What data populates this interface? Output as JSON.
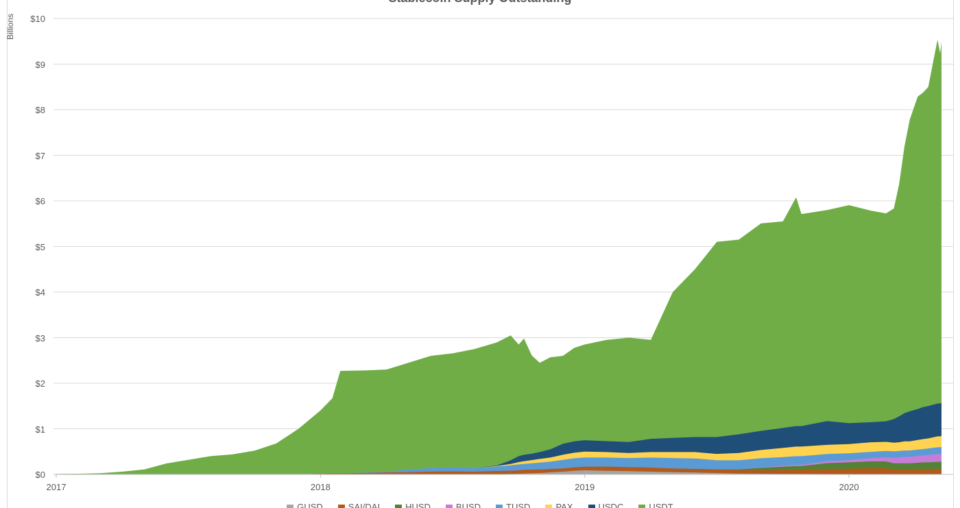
{
  "chart_data": {
    "type": "area",
    "stacked": true,
    "title": "Stablecoin Supply Outstanding",
    "y_unit_label": "Billions",
    "ylim": [
      0,
      10
    ],
    "y_tick_labels": [
      "$0",
      "$1",
      "$2",
      "$3",
      "$4",
      "$5",
      "$6",
      "$7",
      "$8",
      "$9",
      "$10"
    ],
    "xlim": [
      2017.0,
      2020.35
    ],
    "x_tick_positions": [
      2017,
      2018,
      2019,
      2020
    ],
    "x_tick_labels": [
      "2017",
      "2018",
      "2019",
      "2020"
    ],
    "grid": true,
    "legend_position": "bottom",
    "x": [
      2017.0,
      2017.083,
      2017.167,
      2017.25,
      2017.333,
      2017.417,
      2017.5,
      2017.583,
      2017.667,
      2017.75,
      2017.833,
      2017.917,
      2018.0,
      2018.045,
      2018.075,
      2018.167,
      2018.25,
      2018.333,
      2018.417,
      2018.5,
      2018.583,
      2018.667,
      2018.72,
      2018.75,
      2018.77,
      2018.8,
      2018.83,
      2018.87,
      2018.917,
      2018.96,
      2019.0,
      2019.083,
      2019.167,
      2019.25,
      2019.333,
      2019.417,
      2019.5,
      2019.583,
      2019.667,
      2019.75,
      2019.8,
      2019.82,
      2019.917,
      2020.0,
      2020.083,
      2020.14,
      2020.17,
      2020.19,
      2020.21,
      2020.23,
      2020.26,
      2020.28,
      2020.3,
      2020.335,
      2020.345,
      2020.35
    ],
    "series": [
      {
        "name": "GUSD",
        "color": "#a6a6a6",
        "values": [
          0,
          0,
          0,
          0,
          0,
          0,
          0,
          0,
          0,
          0,
          0,
          0,
          0,
          0,
          0,
          0,
          0,
          0,
          0,
          0,
          0,
          0.005,
          0.01,
          0.015,
          0.02,
          0.025,
          0.03,
          0.045,
          0.06,
          0.08,
          0.09,
          0.08,
          0.07,
          0.06,
          0.05,
          0.04,
          0.03,
          0.02,
          0.015,
          0.01,
          0.01,
          0.01,
          0.008,
          0.005,
          0.005,
          0.005,
          0.005,
          0.005,
          0.005,
          0.005,
          0.005,
          0.005,
          0.005,
          0.005,
          0.005,
          0.005
        ]
      },
      {
        "name": "SAI/DAI",
        "color": "#b25a1b",
        "values": [
          0,
          0,
          0,
          0,
          0,
          0,
          0,
          0,
          0,
          0,
          0,
          0.001,
          0.015,
          0.02,
          0.02,
          0.03,
          0.04,
          0.05,
          0.06,
          0.065,
          0.06,
          0.07,
          0.07,
          0.075,
          0.08,
          0.08,
          0.08,
          0.075,
          0.07,
          0.075,
          0.08,
          0.09,
          0.09,
          0.09,
          0.08,
          0.08,
          0.08,
          0.08,
          0.08,
          0.09,
          0.095,
          0.095,
          0.11,
          0.12,
          0.13,
          0.13,
          0.1,
          0.1,
          0.1,
          0.1,
          0.105,
          0.11,
          0.11,
          0.115,
          0.115,
          0.12
        ]
      },
      {
        "name": "HUSD",
        "color": "#548235",
        "values": [
          0,
          0,
          0,
          0,
          0,
          0,
          0,
          0,
          0,
          0,
          0,
          0,
          0,
          0,
          0,
          0,
          0,
          0,
          0,
          0,
          0,
          0,
          0,
          0,
          0,
          0,
          0,
          0,
          0,
          0,
          0,
          0,
          0,
          0,
          0,
          0,
          0,
          0.01,
          0.05,
          0.07,
          0.08,
          0.08,
          0.13,
          0.14,
          0.15,
          0.15,
          0.14,
          0.14,
          0.14,
          0.14,
          0.145,
          0.15,
          0.15,
          0.155,
          0.155,
          0.16
        ]
      },
      {
        "name": "BUSD",
        "color": "#c77dd8",
        "values": [
          0,
          0,
          0,
          0,
          0,
          0,
          0,
          0,
          0,
          0,
          0,
          0,
          0,
          0,
          0,
          0,
          0,
          0,
          0,
          0,
          0,
          0,
          0,
          0,
          0,
          0,
          0,
          0,
          0,
          0,
          0,
          0,
          0,
          0,
          0,
          0,
          0,
          0,
          0.01,
          0.02,
          0.025,
          0.025,
          0.04,
          0.05,
          0.07,
          0.09,
          0.12,
          0.13,
          0.14,
          0.14,
          0.15,
          0.15,
          0.16,
          0.17,
          0.17,
          0.17
        ]
      },
      {
        "name": "TUSD",
        "color": "#5b9bd5",
        "values": [
          0,
          0,
          0,
          0,
          0,
          0,
          0,
          0,
          0,
          0,
          0,
          0,
          0,
          0,
          0,
          0.01,
          0.02,
          0.06,
          0.08,
          0.09,
          0.08,
          0.1,
          0.12,
          0.13,
          0.13,
          0.14,
          0.15,
          0.16,
          0.19,
          0.2,
          0.2,
          0.2,
          0.2,
          0.22,
          0.23,
          0.23,
          0.2,
          0.2,
          0.2,
          0.19,
          0.19,
          0.19,
          0.16,
          0.15,
          0.14,
          0.14,
          0.14,
          0.14,
          0.14,
          0.14,
          0.14,
          0.14,
          0.145,
          0.15,
          0.15,
          0.15
        ]
      },
      {
        "name": "PAX",
        "color": "#ffd34f",
        "values": [
          0,
          0,
          0,
          0,
          0,
          0,
          0,
          0,
          0,
          0,
          0,
          0,
          0,
          0,
          0,
          0,
          0,
          0,
          0,
          0,
          0,
          0.01,
          0.03,
          0.05,
          0.06,
          0.07,
          0.08,
          0.09,
          0.11,
          0.12,
          0.13,
          0.12,
          0.11,
          0.12,
          0.13,
          0.14,
          0.14,
          0.16,
          0.18,
          0.2,
          0.21,
          0.21,
          0.2,
          0.2,
          0.21,
          0.2,
          0.19,
          0.19,
          0.2,
          0.2,
          0.21,
          0.22,
          0.22,
          0.24,
          0.24,
          0.24
        ]
      },
      {
        "name": "USDC",
        "color": "#1f4e79",
        "values": [
          0,
          0,
          0,
          0,
          0,
          0,
          0,
          0,
          0,
          0,
          0,
          0,
          0,
          0,
          0,
          0,
          0,
          0,
          0,
          0,
          0,
          0.01,
          0.08,
          0.13,
          0.14,
          0.14,
          0.15,
          0.18,
          0.24,
          0.25,
          0.25,
          0.24,
          0.24,
          0.29,
          0.31,
          0.33,
          0.37,
          0.41,
          0.42,
          0.44,
          0.45,
          0.45,
          0.52,
          0.46,
          0.44,
          0.45,
          0.52,
          0.57,
          0.62,
          0.66,
          0.68,
          0.7,
          0.71,
          0.72,
          0.72,
          0.73
        ]
      },
      {
        "name": "USDT",
        "color": "#70ad47",
        "values": [
          0.01,
          0.015,
          0.025,
          0.06,
          0.11,
          0.24,
          0.32,
          0.4,
          0.44,
          0.52,
          0.68,
          1.0,
          1.39,
          1.65,
          2.25,
          2.24,
          2.24,
          2.34,
          2.46,
          2.5,
          2.61,
          2.7,
          2.74,
          2.45,
          2.55,
          2.15,
          1.96,
          2.02,
          1.93,
          2.05,
          2.1,
          2.22,
          2.29,
          2.17,
          3.2,
          3.68,
          4.28,
          4.27,
          4.55,
          4.53,
          5.02,
          4.65,
          4.63,
          4.78,
          4.64,
          4.56,
          4.62,
          5.1,
          5.85,
          6.4,
          6.85,
          6.9,
          7.0,
          7.98,
          7.68,
          7.92
        ]
      }
    ]
  },
  "colors": {
    "background": "#ffffff",
    "gridline": "#d9d9d9",
    "axis_line": "#bfbfbf",
    "frame_border": "#d9d9d9",
    "text": "#595959"
  }
}
